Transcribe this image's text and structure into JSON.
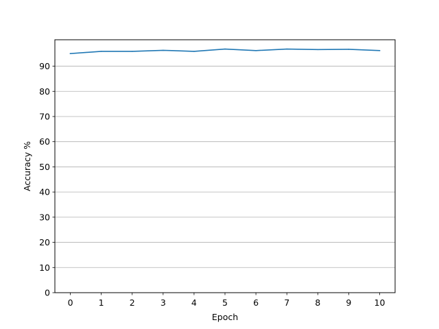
{
  "chart_data": {
    "type": "line",
    "title": "",
    "xlabel": "Epoch",
    "ylabel": "Accuracy %",
    "x": [
      0,
      1,
      2,
      3,
      4,
      5,
      6,
      7,
      8,
      9,
      10
    ],
    "series": [
      {
        "values": [
          95.0,
          95.9,
          95.9,
          96.3,
          95.9,
          96.8,
          96.2,
          96.8,
          96.6,
          96.7,
          96.2
        ],
        "color": "#1f77b4"
      }
    ],
    "xlim": [
      -0.5,
      10.5
    ],
    "ylim": [
      0,
      100.5
    ],
    "xticks": [
      "0",
      "1",
      "2",
      "3",
      "4",
      "5",
      "6",
      "7",
      "8",
      "9",
      "10"
    ],
    "yticks": [
      "0",
      "10",
      "20",
      "30",
      "40",
      "50",
      "60",
      "70",
      "80",
      "90"
    ],
    "grid": "y",
    "legend": "none"
  }
}
